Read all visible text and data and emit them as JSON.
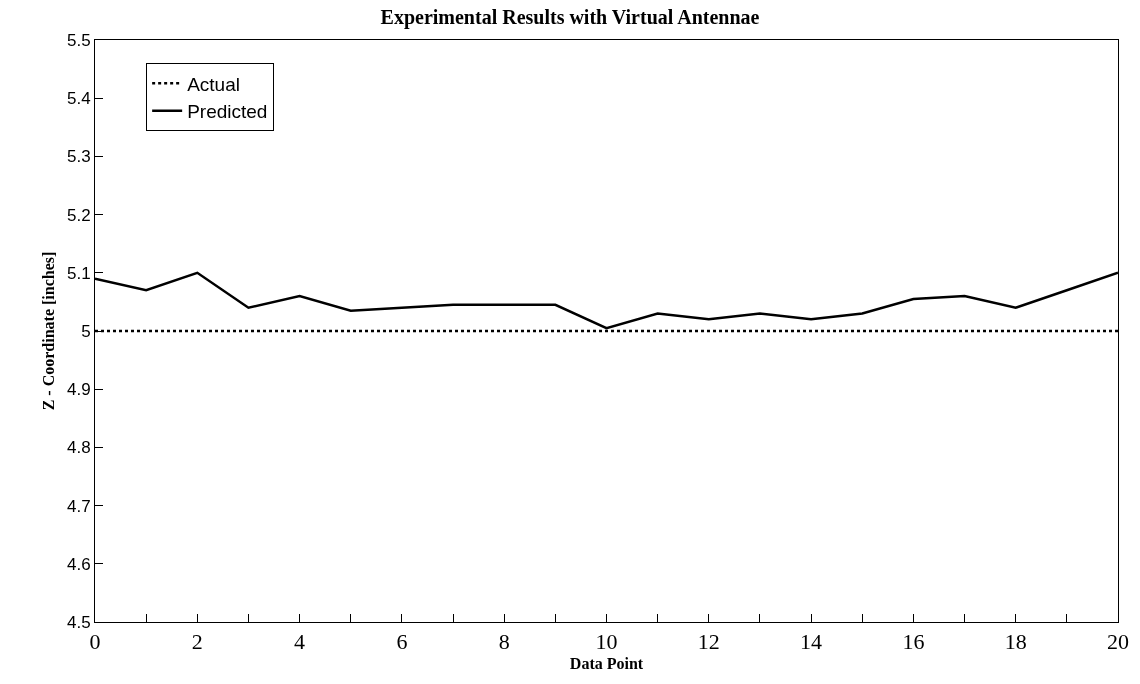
{
  "chart_data": {
    "type": "line",
    "title": "Experimental Results with Virtual Antennae",
    "xlabel": "Data Point",
    "ylabel": "Z - Coordinate [inches]",
    "x": [
      0,
      1,
      2,
      3,
      4,
      5,
      6,
      7,
      8,
      9,
      10,
      11,
      12,
      13,
      14,
      15,
      16,
      17,
      18,
      19,
      20
    ],
    "series": [
      {
        "name": "Actual",
        "color": "#000000",
        "line_style": "dotted",
        "values": [
          5,
          5,
          5,
          5,
          5,
          5,
          5,
          5,
          5,
          5,
          5,
          5,
          5,
          5,
          5,
          5,
          5,
          5,
          5,
          5,
          5
        ]
      },
      {
        "name": "Predicted",
        "color": "#000000",
        "line_style": "solid",
        "values": [
          5.09,
          5.07,
          5.1,
          5.04,
          5.06,
          5.035,
          5.04,
          5.045,
          5.045,
          5.045,
          5.005,
          5.03,
          5.02,
          5.03,
          5.02,
          5.03,
          5.055,
          5.06,
          5.04,
          5.07,
          5.1
        ]
      }
    ],
    "xlim": [
      0,
      20
    ],
    "xticks": [
      0,
      2,
      4,
      6,
      8,
      10,
      12,
      14,
      16,
      18,
      20
    ],
    "ylim": [
      4.5,
      5.5
    ],
    "yticks": [
      4.5,
      4.6,
      4.7,
      4.8,
      4.9,
      5,
      5.1,
      5.2,
      5.3,
      5.4,
      5.5
    ],
    "grid": false,
    "legend": "top left",
    "marker": "none"
  }
}
